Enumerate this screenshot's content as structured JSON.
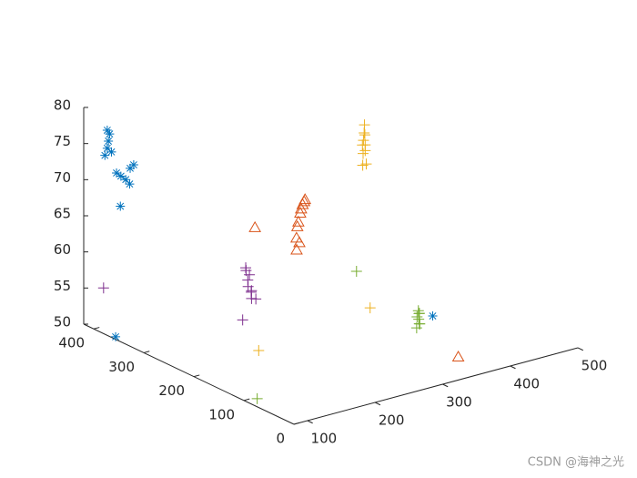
{
  "chart_data": {
    "type": "scatter3d",
    "xlim": [
      80,
      500
    ],
    "ylim": [
      0,
      420
    ],
    "zlim": [
      50,
      80
    ],
    "xticks": [
      100,
      200,
      300,
      400,
      500
    ],
    "yticks": [
      0,
      100,
      200,
      300,
      400
    ],
    "zticks": [
      50,
      55,
      60,
      65,
      70,
      75,
      80
    ],
    "grid": false,
    "series": [
      {
        "color": "#0072BD",
        "marker": "*",
        "x": [
          100,
          102,
          101,
          100,
          98,
          104,
          110,
          115,
          120,
          122,
          125,
          128,
          112,
          85,
          426
        ],
        "y": [
          400,
          398,
          399,
          400,
          402,
          397,
          395,
          393,
          390,
          385,
          388,
          385,
          390,
          363,
          190
        ],
        "z": [
          77,
          76.5,
          75.5,
          74.5,
          73.5,
          74,
          71,
          70.5,
          70,
          69.5,
          71.5,
          72,
          66.5,
          50,
          50
        ]
      },
      {
        "color": "#D95319",
        "marker": "^",
        "x": [
          290,
          292,
          295,
          298,
          300,
          285,
          282,
          280,
          288,
          278,
          240,
          369
        ],
        "y": [
          271,
          272,
          273,
          274,
          275,
          268,
          266,
          265,
          270,
          262,
          294,
          62
        ],
        "z": [
          65,
          65.5,
          66,
          66.3,
          66.5,
          64,
          63.5,
          62,
          61,
          60.5,
          63.5,
          50
        ]
      },
      {
        "color": "#EDB120",
        "marker": "+",
        "x": [
          366,
          368,
          370,
          372,
          360,
          358,
          375,
          378,
          362,
          365,
          193,
          383
        ],
        "y": [
          246,
          248,
          250,
          252,
          240,
          238,
          256,
          258,
          244,
          246,
          223,
          257
        ],
        "z": [
          75,
          76,
          74.5,
          73,
          72.5,
          71,
          72,
          70,
          73.5,
          74,
          50,
          50
        ]
      },
      {
        "color": "#7E2F8E",
        "marker": "+",
        "x": [
          216,
          218,
          220,
          222,
          224,
          226,
          230,
          228,
          232,
          210,
          99
        ],
        "y": [
          280,
          282,
          278,
          284,
          286,
          282,
          288,
          276,
          290,
          278,
          406
        ],
        "z": [
          59,
          58.5,
          58,
          57,
          56,
          55.5,
          55,
          54.5,
          54,
          52,
          55
        ]
      },
      {
        "color": "#77AC30",
        "marker": "+",
        "x": [
          387,
          390,
          385,
          388,
          392,
          380,
          395,
          398,
          96,
          371
        ],
        "y": [
          166,
          168,
          162,
          170,
          172,
          160,
          175,
          178,
          95,
          268
        ],
        "z": [
          52.5,
          52,
          52.3,
          51.5,
          51,
          50.5,
          50.2,
          50,
          50,
          55
        ]
      }
    ]
  },
  "watermark": "CSDN @海神之光"
}
